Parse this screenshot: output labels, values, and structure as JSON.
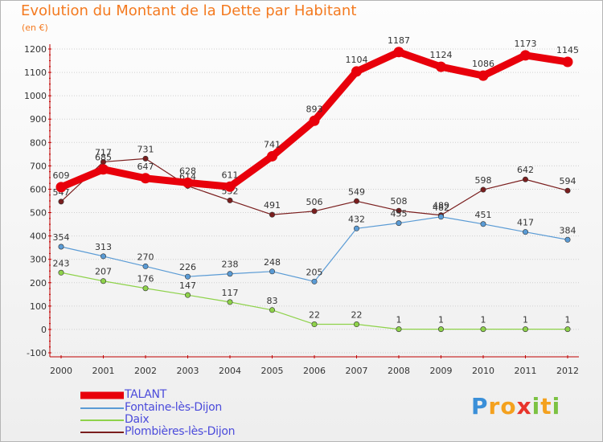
{
  "title": "Evolution du Montant de la Dette par Habitant",
  "subtitle": "(en €)",
  "colors": {
    "title": "#f47a20",
    "grid": "#cfcfcf",
    "legend_text": "#4b4bdb"
  },
  "chart_data": {
    "type": "line",
    "x": [
      "2000",
      "2001",
      "2002",
      "2003",
      "2004",
      "2005",
      "2006",
      "2007",
      "2008",
      "2009",
      "2010",
      "2011",
      "2012"
    ],
    "ylim": [
      -100,
      1200
    ],
    "yticks": [
      -100,
      0,
      100,
      200,
      300,
      400,
      500,
      600,
      700,
      800,
      900,
      1000,
      1100,
      1200
    ],
    "grid": true,
    "legend_position": "bottom-left",
    "series": [
      {
        "name": "TALANT",
        "color": "#e8000b",
        "values": [
          609,
          685,
          647,
          628,
          611,
          741,
          893,
          1104,
          1187,
          1124,
          1086,
          1173,
          1145
        ]
      },
      {
        "name": "Fontaine-lès-Dijon",
        "color": "#5a9bd5",
        "values": [
          354,
          313,
          270,
          226,
          238,
          248,
          205,
          432,
          455,
          482,
          451,
          417,
          384
        ]
      },
      {
        "name": "Daix",
        "color": "#8ed24a",
        "values": [
          243,
          207,
          176,
          147,
          117,
          83,
          22,
          22,
          1,
          1,
          1,
          1,
          1
        ]
      },
      {
        "name": "Plombières-lès-Dijon",
        "color": "#7a1e1e",
        "values": [
          547,
          717,
          731,
          614,
          552,
          491,
          506,
          549,
          508,
          489,
          598,
          642,
          594
        ]
      }
    ]
  },
  "logo": {
    "letters": [
      "P",
      "r",
      "o",
      "x",
      "i",
      "t",
      "i"
    ],
    "colors": [
      "#3a8fd8",
      "#f4a11e",
      "#f4a11e",
      "#e8342b",
      "#7cc242",
      "#f4a11e",
      "#7cc242"
    ]
  }
}
